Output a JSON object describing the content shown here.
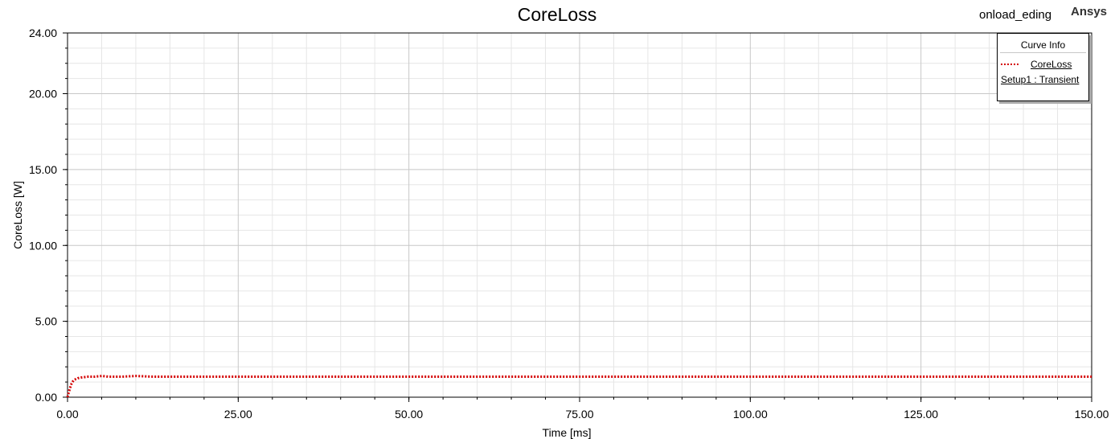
{
  "title": "CoreLoss",
  "design_name": "onload_eding",
  "brand": "Ansys",
  "legend": {
    "header": "Curve Info",
    "series_name": "CoreLoss",
    "source": "Setup1 : Transient"
  },
  "colors": {
    "series": "#d40000",
    "grid_major": "#c8c8c8",
    "grid_minor": "#e6e6e6"
  },
  "chart_data": {
    "type": "line",
    "title": "CoreLoss",
    "xlabel": "Time [ms]",
    "ylabel": "CoreLoss [W]",
    "xlim": [
      0,
      150
    ],
    "ylim": [
      0,
      24
    ],
    "x_ticks": [
      "0.00",
      "25.00",
      "50.00",
      "75.00",
      "100.00",
      "125.00",
      "150.00"
    ],
    "y_ticks": [
      "0.00",
      "5.00",
      "10.00",
      "15.00",
      "20.00",
      "24.00"
    ],
    "grid": true,
    "legend_position": "top-right",
    "series": [
      {
        "name": "CoreLoss",
        "line_style": "dotted",
        "x": [
          0,
          0.2,
          0.4,
          0.6,
          0.8,
          1.0,
          1.5,
          2.0,
          3.0,
          4.0,
          5.0,
          6.0,
          8.0,
          10.0,
          12.5,
          15.0,
          20.0,
          25.0,
          30.0,
          40.0,
          50.0,
          60.0,
          75.0,
          90.0,
          100.0,
          110.0,
          125.0,
          140.0,
          150.0
        ],
        "y": [
          0.0,
          0.35,
          0.65,
          0.9,
          1.05,
          1.15,
          1.25,
          1.3,
          1.35,
          1.35,
          1.4,
          1.35,
          1.35,
          1.4,
          1.35,
          1.35,
          1.35,
          1.35,
          1.35,
          1.35,
          1.35,
          1.35,
          1.35,
          1.35,
          1.35,
          1.35,
          1.35,
          1.35,
          1.35
        ]
      }
    ]
  }
}
